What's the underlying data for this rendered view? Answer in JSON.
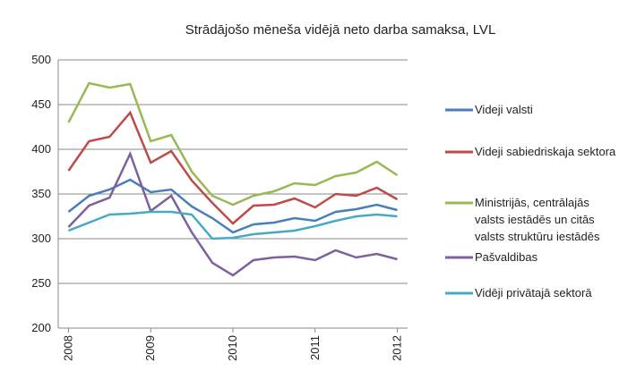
{
  "chart_data": {
    "type": "line",
    "title": "Strādājošo mēneša vidējā neto darba samaksa, LVL",
    "categories": [
      "2008",
      null,
      null,
      null,
      "2009",
      null,
      null,
      null,
      "2010",
      null,
      null,
      null,
      "2011",
      null,
      null,
      null,
      "2012"
    ],
    "series": [
      {
        "name": "Videji valsti",
        "color": "#4a7ebb",
        "values": [
          330,
          348,
          355,
          366,
          352,
          355,
          336,
          323,
          307,
          316,
          318,
          323,
          320,
          330,
          333,
          338,
          332
        ]
      },
      {
        "name": "Videji sabiedriskaja sektora",
        "color": "#be4b48",
        "values": [
          376,
          409,
          414,
          441,
          385,
          398,
          365,
          340,
          317,
          337,
          338,
          345,
          335,
          350,
          348,
          357,
          344
        ]
      },
      {
        "name": "Ministrijās, centrālajās valsts iestādēs un citās valsts struktūru iestādēs",
        "color": "#98b954",
        "values": [
          430,
          474,
          469,
          473,
          409,
          416,
          375,
          348,
          338,
          348,
          353,
          362,
          360,
          370,
          374,
          386,
          371
        ]
      },
      {
        "name": "Pašvaldibas",
        "color": "#7d60a0",
        "values": [
          313,
          337,
          346,
          395,
          331,
          348,
          307,
          273,
          259,
          276,
          279,
          280,
          276,
          287,
          279,
          283,
          277
        ]
      },
      {
        "name": "Vidēji privātajā sektorā",
        "color": "#46aac5",
        "values": [
          309,
          318,
          327,
          328,
          330,
          330,
          327,
          300,
          301,
          305,
          307,
          309,
          314,
          320,
          325,
          327,
          325
        ]
      }
    ],
    "ylim": [
      200,
      500
    ],
    "yticks": [
      200,
      250,
      300,
      350,
      400,
      450,
      500
    ],
    "grid": true
  }
}
